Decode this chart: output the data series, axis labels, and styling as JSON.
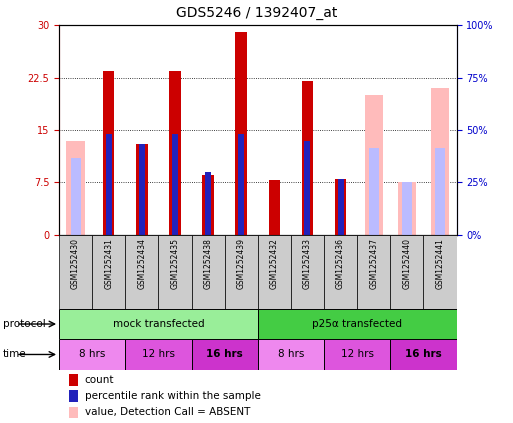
{
  "title": "GDS5246 / 1392407_at",
  "samples": [
    "GSM1252430",
    "GSM1252431",
    "GSM1252434",
    "GSM1252435",
    "GSM1252438",
    "GSM1252439",
    "GSM1252432",
    "GSM1252433",
    "GSM1252436",
    "GSM1252437",
    "GSM1252440",
    "GSM1252441"
  ],
  "count_values": [
    0,
    23.5,
    13.0,
    23.5,
    8.5,
    29.0,
    7.8,
    22.0,
    8.0,
    0,
    0,
    0
  ],
  "rank_values": [
    0,
    14.5,
    13.0,
    14.5,
    9.0,
    14.5,
    0,
    13.5,
    8.0,
    0,
    0,
    0
  ],
  "absent_count": [
    13.5,
    0,
    0,
    0,
    0,
    0,
    0,
    0,
    0,
    20.0,
    7.5,
    21.0
  ],
  "absent_rank": [
    11.0,
    0,
    0,
    0,
    0,
    0,
    0,
    0,
    0,
    12.5,
    7.5,
    12.5
  ],
  "count_color": "#cc0000",
  "rank_color": "#2222bb",
  "absent_count_color": "#ffbbbb",
  "absent_rank_color": "#bbbbff",
  "ylim_left": [
    0,
    30
  ],
  "ylim_right": [
    0,
    100
  ],
  "yticks_left": [
    0,
    7.5,
    15,
    22.5,
    30
  ],
  "yticks_right": [
    0,
    25,
    50,
    75,
    100
  ],
  "ytick_labels_left": [
    "0",
    "7.5",
    "15",
    "22.5",
    "30"
  ],
  "ytick_labels_right": [
    "0%",
    "25%",
    "50%",
    "75%",
    "100%"
  ],
  "protocol_groups": [
    {
      "label": "mock transfected",
      "start": 0,
      "end": 5,
      "color": "#99ee99"
    },
    {
      "label": "p25α transfected",
      "start": 6,
      "end": 11,
      "color": "#44cc44"
    }
  ],
  "time_groups": [
    {
      "label": "8 hrs",
      "start": 0,
      "end": 1,
      "color": "#ee88ee"
    },
    {
      "label": "12 hrs",
      "start": 2,
      "end": 3,
      "color": "#dd55dd"
    },
    {
      "label": "16 hrs",
      "start": 4,
      "end": 5,
      "color": "#cc33cc"
    },
    {
      "label": "8 hrs",
      "start": 6,
      "end": 7,
      "color": "#ee88ee"
    },
    {
      "label": "12 hrs",
      "start": 8,
      "end": 9,
      "color": "#dd55dd"
    },
    {
      "label": "16 hrs",
      "start": 10,
      "end": 11,
      "color": "#cc33cc"
    }
  ],
  "background_color": "#ffffff",
  "title_fontsize": 10,
  "tick_fontsize": 7,
  "legend_fontsize": 7.5,
  "sample_box_color": "#cccccc",
  "left_axis_color": "#cc0000",
  "right_axis_color": "#0000cc"
}
